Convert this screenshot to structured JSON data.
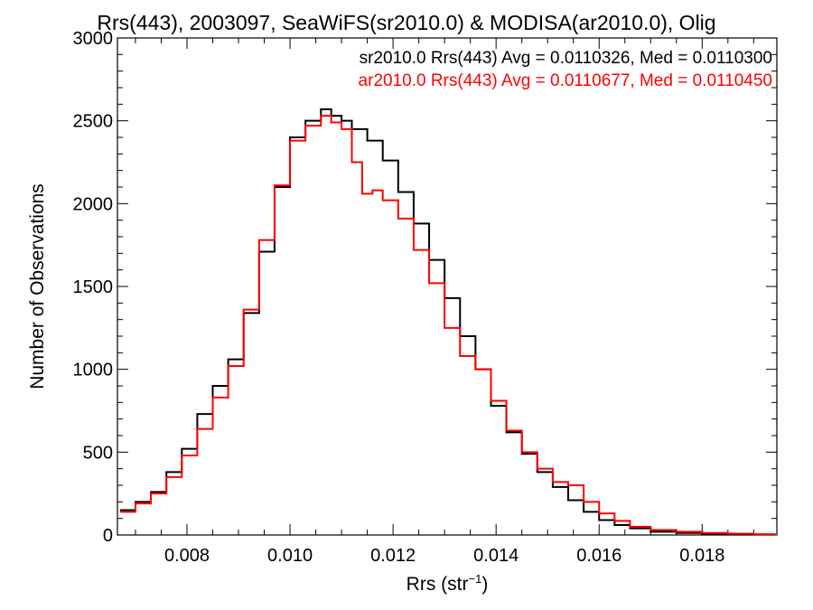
{
  "chart_data": {
    "type": "line",
    "title": "Rrs(443), 2003097, SeaWiFS(sr2010.0) & MODISA(ar2010.0), Olig",
    "xlabel": "Rrs (str",
    "xlabel_sup": "−1",
    "xlabel_end": ")",
    "ylabel": "Number of Observations",
    "xlim": [
      0.00665,
      0.01945
    ],
    "ylim": [
      0,
      3000
    ],
    "x_ticks": [
      0.008,
      0.01,
      0.012,
      0.014,
      0.016,
      0.018
    ],
    "x_tick_labels": [
      "0.008",
      "0.010",
      "0.012",
      "0.014",
      "0.016",
      "0.018"
    ],
    "y_ticks": [
      0,
      500,
      1000,
      1500,
      2000,
      2500,
      3000
    ],
    "y_tick_labels": [
      "0",
      "500",
      "1000",
      "1500",
      "2000",
      "2500",
      "3000"
    ],
    "legend_position": "top-right",
    "colors": {
      "axes": "#000000",
      "sr2010": "#000000",
      "ar2010": "#ff0000"
    },
    "series": [
      {
        "name": "sr2010.0 Rrs(443) Avg = 0.0110326, Med = 0.0110300",
        "color": "#000000",
        "x": [
          0.0067,
          0.007,
          0.0073,
          0.0076,
          0.0079,
          0.0082,
          0.0085,
          0.0088,
          0.0091,
          0.0094,
          0.0097,
          0.01,
          0.0103,
          0.0106,
          0.0108,
          0.011,
          0.0112,
          0.0115,
          0.0118,
          0.0121,
          0.0124,
          0.0127,
          0.013,
          0.0133,
          0.0136,
          0.0139,
          0.0142,
          0.0145,
          0.0148,
          0.0151,
          0.0154,
          0.0157,
          0.016,
          0.0163,
          0.0166,
          0.017,
          0.0175,
          0.018,
          0.0185,
          0.019,
          0.0194
        ],
        "y": [
          150,
          200,
          260,
          380,
          520,
          730,
          900,
          1060,
          1340,
          1710,
          2100,
          2400,
          2500,
          2570,
          2530,
          2500,
          2450,
          2380,
          2260,
          2070,
          1880,
          1660,
          1430,
          1200,
          1000,
          780,
          620,
          490,
          380,
          290,
          210,
          140,
          90,
          60,
          40,
          20,
          12,
          8,
          5,
          3,
          2
        ]
      },
      {
        "name": "ar2010.0 Rrs(443) Avg = 0.0110677, Med = 0.0110450",
        "color": "#ff0000",
        "x": [
          0.0067,
          0.007,
          0.0073,
          0.0076,
          0.0079,
          0.0082,
          0.0085,
          0.0088,
          0.0091,
          0.0094,
          0.0097,
          0.01,
          0.0103,
          0.0106,
          0.0108,
          0.011,
          0.0112,
          0.0114,
          0.0116,
          0.0118,
          0.0121,
          0.0124,
          0.0127,
          0.013,
          0.0133,
          0.0136,
          0.0139,
          0.0142,
          0.0145,
          0.0148,
          0.0151,
          0.0154,
          0.0157,
          0.016,
          0.0163,
          0.0166,
          0.017,
          0.0175,
          0.018,
          0.0185,
          0.019,
          0.0194
        ],
        "y": [
          140,
          190,
          250,
          350,
          480,
          640,
          830,
          1020,
          1360,
          1780,
          2110,
          2380,
          2470,
          2530,
          2490,
          2450,
          2250,
          2060,
          2080,
          2020,
          1910,
          1720,
          1520,
          1250,
          1080,
          1000,
          810,
          630,
          500,
          400,
          320,
          300,
          200,
          130,
          85,
          50,
          30,
          20,
          12,
          8,
          5,
          3
        ]
      }
    ]
  }
}
